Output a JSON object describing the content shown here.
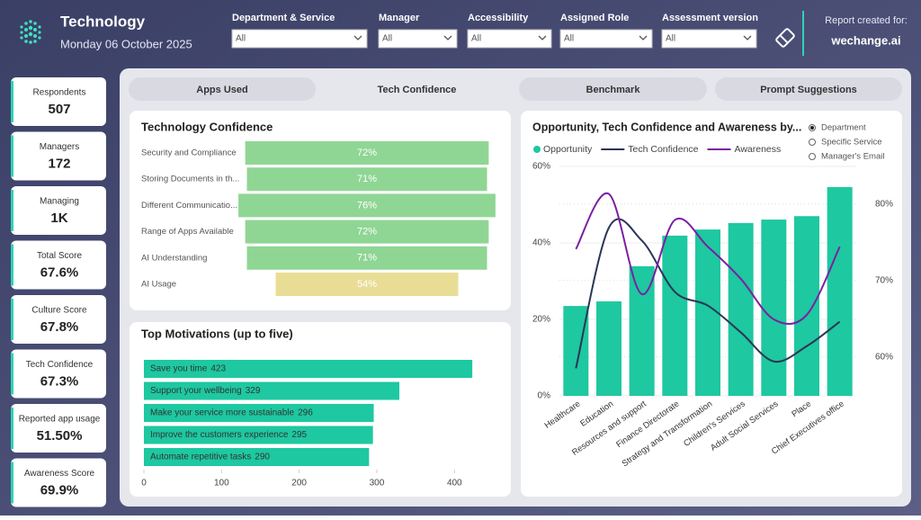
{
  "header": {
    "title": "Technology",
    "date": "Monday 06 October 2025"
  },
  "filters": [
    {
      "label": "Department & Service",
      "value": "All"
    },
    {
      "label": "Manager",
      "value": "All"
    },
    {
      "label": "Accessibility",
      "value": "All"
    },
    {
      "label": "Assigned Role",
      "value": "All"
    },
    {
      "label": "Assessment version",
      "value": "All"
    }
  ],
  "report": {
    "label": "Report created for:",
    "org": "wechange.ai"
  },
  "kpis": [
    {
      "label": "Respondents",
      "value": "507"
    },
    {
      "label": "Managers",
      "value": "172"
    },
    {
      "label": "Managing",
      "value": "1K"
    },
    {
      "label": "Total Score",
      "value": "67.6%"
    },
    {
      "label": "Culture Score",
      "value": "67.8%"
    },
    {
      "label": "Tech Confidence",
      "value": "67.3%"
    },
    {
      "label": "Reported app usage",
      "value": "51.50%"
    },
    {
      "label": "Awareness Score",
      "value": "69.9%"
    }
  ],
  "tabs": {
    "items": [
      "Apps Used",
      "Tech Confidence",
      "Benchmark",
      "Prompt Suggestions"
    ],
    "selected": 1
  },
  "chart_data": [
    {
      "type": "funnel",
      "title": "Technology Confidence",
      "categories": [
        "Security and Compliance",
        "Storing Documents in th...",
        "Different Communicatio...",
        "Range of Apps Available",
        "AI Understanding",
        "AI Usage"
      ],
      "values": [
        72,
        71,
        76,
        72,
        71,
        54
      ],
      "value_labels": [
        "72%",
        "71%",
        "76%",
        "72%",
        "71%",
        "54%"
      ],
      "colors": [
        "#8fd694",
        "#8fd694",
        "#8fd694",
        "#8fd694",
        "#8fd694",
        "#e9dd96"
      ]
    },
    {
      "type": "hbar",
      "title": "Top Motivations (up to five)",
      "categories": [
        "Save you time",
        "Support your wellbeing",
        "Make your service more sustainable",
        "Improve the customers experience",
        "Automate repetitive tasks"
      ],
      "values": [
        423,
        329,
        296,
        295,
        290
      ],
      "color": "#1ec8a0",
      "xlim": [
        0,
        446
      ],
      "xticks": [
        0,
        100,
        200,
        300,
        400
      ]
    },
    {
      "type": "combo",
      "title": "Opportunity, Tech Confidence and Awareness by...",
      "categories": [
        "Healthcare",
        "Education",
        "Resources and support",
        "Finance Directorate",
        "Strategy and Transformation",
        "Children's Services",
        "Adult Social Services",
        "Place",
        "Chief Executives office"
      ],
      "series": [
        {
          "name": "Opportunity",
          "kind": "bar",
          "color": "#1ec8a0",
          "values": [
            23.5,
            24.7,
            33.9,
            41.9,
            43.5,
            45.2,
            46.1,
            47,
            54.6
          ]
        },
        {
          "name": "Tech Confidence",
          "kind": "line",
          "axis": "y2",
          "color": "#2b3556",
          "values": [
            58.5,
            76.9,
            75.2,
            68.5,
            66.7,
            63.2,
            59.4,
            61.4,
            64.6
          ]
        },
        {
          "name": "Awareness",
          "kind": "line",
          "axis": "y2",
          "color": "#7b1fa2",
          "values": [
            74.1,
            81.3,
            68.2,
            77.9,
            74.4,
            70.2,
            64.9,
            65.5,
            74.4
          ]
        }
      ],
      "ylim": [
        0,
        60
      ],
      "yticks": [
        {
          "value": 0,
          "label": "0%"
        },
        {
          "value": 20,
          "label": "20%"
        },
        {
          "value": 40,
          "label": "40%"
        },
        {
          "value": 60,
          "label": "60%"
        }
      ],
      "y2lim": [
        54.9,
        84.9
      ],
      "y2ticks": [
        {
          "value": 60,
          "label": "60%"
        },
        {
          "value": 70,
          "label": "70%"
        },
        {
          "value": 80,
          "label": "80%"
        }
      ],
      "options": [
        "Department",
        "Specific Service",
        "Manager's Email"
      ],
      "selected_option": 0
    }
  ]
}
